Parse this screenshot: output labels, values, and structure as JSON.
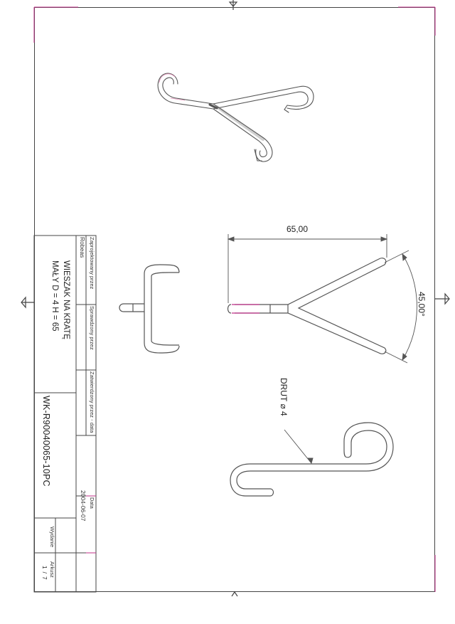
{
  "drawing": {
    "title_line1": "WIESZAK NA KRATĘ",
    "title_line2": "MAŁY D = 4 H = 65",
    "part_number": "WK-R90040065-10PC",
    "designed_by_label": "Zaprojektowany przez",
    "designed_by_value": "Robeas",
    "checked_by_label": "Sprawdzony przez",
    "approved_by_label": "Zatwierdzony przez - data",
    "date_label": "Data",
    "date_value": "2004-06-07",
    "edition_label": "Wydanie",
    "sheet_label": "Arkusz",
    "sheet_value": "1 / 7"
  },
  "dimensions": {
    "width": "65,00",
    "angle": "45,00°",
    "wire_label": "DRUT ⌀ 4"
  },
  "colors": {
    "line": "#555555",
    "frame": "#444444",
    "red_accent": "#c0308a",
    "hatch": "#888888"
  }
}
